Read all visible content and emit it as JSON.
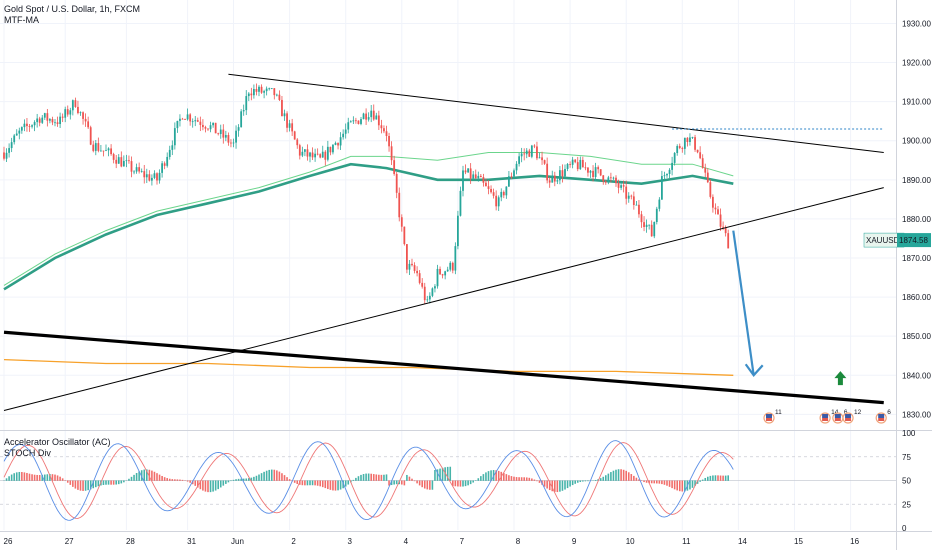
{
  "legend": {
    "symbol_title": "Gold Spot / U.S. Dollar, 1h, FXCM",
    "indicator": "MTF-MA",
    "osc_title": "Accelerator Oscillator (AC)",
    "osc_indicator2": "STOCH Div"
  },
  "price_label": {
    "symbol": "XAUUSD",
    "value": "1874.58",
    "color": "#26a69a"
  },
  "colors": {
    "up": "#26a69a",
    "down": "#ef5350",
    "ma_thin": "#6bd58c",
    "ma_thick": "#2f9e86",
    "orange": "#f7a12a",
    "dotted": "#2f86c8",
    "arrow": "#3d8ec7",
    "green_arrow": "#1b8a3c",
    "stoch_k": "#5b8fe6",
    "stoch_d": "#ef7777"
  },
  "chart_data": [
    {
      "type": "candlestick",
      "title": "Gold Spot / U.S. Dollar, 1h, FXCM",
      "xlabel": "",
      "ylabel": "",
      "x_ticks": [
        "26",
        "27",
        "28",
        "31",
        "Jun",
        "2",
        "3",
        "4",
        "7",
        "8",
        "9",
        "10",
        "11",
        "14",
        "15",
        "16"
      ],
      "y_ticks": [
        1830,
        1840,
        1850,
        1860,
        1870,
        1880,
        1890,
        1900,
        1910,
        1920,
        1930
      ],
      "ylim": [
        1826,
        1936
      ],
      "x_range_bars": [
        0,
        191
      ],
      "last_price": 1874.58,
      "candles_close_path": [
        [
          0,
          1897
        ],
        [
          6,
          1902
        ],
        [
          14,
          1906
        ],
        [
          22,
          1905
        ],
        [
          28,
          1910
        ],
        [
          35,
          1899
        ],
        [
          43,
          1896
        ],
        [
          52,
          1892
        ],
        [
          60,
          1890
        ],
        [
          70,
          1907
        ],
        [
          80,
          1904
        ],
        [
          90,
          1899
        ],
        [
          96,
          1913
        ],
        [
          106,
          1912
        ],
        [
          116,
          1897
        ],
        [
          124,
          1895
        ],
        [
          136,
          1904
        ],
        [
          144,
          1908
        ],
        [
          150,
          1902
        ],
        [
          154,
          1886
        ],
        [
          158,
          1868
        ],
        [
          162,
          1866
        ],
        [
          166,
          1858
        ],
        [
          170,
          1866
        ],
        [
          176,
          1868
        ],
        [
          180,
          1892
        ],
        [
          186,
          1890
        ],
        [
          194,
          1884
        ],
        [
          202,
          1896
        ],
        [
          208,
          1898
        ],
        [
          214,
          1890
        ],
        [
          224,
          1894
        ],
        [
          232,
          1892
        ],
        [
          240,
          1889
        ],
        [
          248,
          1883
        ],
        [
          254,
          1876
        ],
        [
          258,
          1890
        ],
        [
          264,
          1898
        ],
        [
          268,
          1901
        ],
        [
          272,
          1898
        ],
        [
          276,
          1888
        ],
        [
          280,
          1880
        ],
        [
          284,
          1874
        ]
      ],
      "moving_averages": [
        {
          "name": "MA thin",
          "points": [
            [
              0,
              1863
            ],
            [
              20,
              1871
            ],
            [
              40,
              1877
            ],
            [
              60,
              1882
            ],
            [
              80,
              1885
            ],
            [
              100,
              1888
            ],
            [
              120,
              1892
            ],
            [
              136,
              1896
            ],
            [
              150,
              1896
            ],
            [
              170,
              1895
            ],
            [
              190,
              1897
            ],
            [
              210,
              1897
            ],
            [
              230,
              1896
            ],
            [
              250,
              1894
            ],
            [
              270,
              1894
            ],
            [
              286,
              1891
            ]
          ]
        },
        {
          "name": "MA thick",
          "points": [
            [
              0,
              1862
            ],
            [
              20,
              1870
            ],
            [
              40,
              1876
            ],
            [
              60,
              1881
            ],
            [
              80,
              1884
            ],
            [
              100,
              1887
            ],
            [
              120,
              1891
            ],
            [
              136,
              1894
            ],
            [
              150,
              1893
            ],
            [
              170,
              1890
            ],
            [
              190,
              1890
            ],
            [
              210,
              1891
            ],
            [
              230,
              1890
            ],
            [
              250,
              1889
            ],
            [
              270,
              1891
            ],
            [
              286,
              1889
            ]
          ]
        },
        {
          "name": "orange",
          "points": [
            [
              0,
              1844
            ],
            [
              40,
              1843
            ],
            [
              80,
              1843
            ],
            [
              120,
              1842
            ],
            [
              160,
              1842
            ],
            [
              200,
              1841
            ],
            [
              240,
              1841
            ],
            [
              286,
              1840
            ]
          ]
        }
      ],
      "trendlines": [
        {
          "name": "upper",
          "from": [
            88,
            1917
          ],
          "to": [
            345,
            1897
          ],
          "color": "#000000"
        },
        {
          "name": "lower",
          "from": [
            0,
            1831
          ],
          "to": [
            345,
            1888
          ],
          "color": "#000000"
        },
        {
          "name": "bold support",
          "from": [
            0,
            1851
          ],
          "to": [
            345,
            1833
          ],
          "color": "#000000",
          "bold": true
        },
        {
          "name": "dotted resistance",
          "from": [
            262,
            1903
          ],
          "to": [
            345,
            1903
          ],
          "color": "#2f86c8",
          "dotted": true
        }
      ],
      "projection": {
        "from": [
          286,
          1877
        ],
        "to": [
          294,
          1840
        ]
      },
      "green_arrow": {
        "bar": 328,
        "price": 1838
      },
      "events": [
        {
          "label": "11",
          "bar": 300
        },
        {
          "label": "14",
          "bar": 322
        },
        {
          "label": "6",
          "bar": 327
        },
        {
          "label": "12",
          "bar": 331
        },
        {
          "label": "6",
          "bar": 344
        }
      ]
    },
    {
      "type": "oscillator",
      "title": "Accelerator Oscillator (AC)",
      "y_ticks": [
        0,
        25,
        50,
        75,
        100
      ],
      "ylim": [
        0,
        100
      ],
      "series": [
        {
          "name": "STOCH Div",
          "type": "line"
        },
        {
          "name": "Accelerator Oscillator (AC)",
          "type": "histogram"
        }
      ]
    }
  ]
}
